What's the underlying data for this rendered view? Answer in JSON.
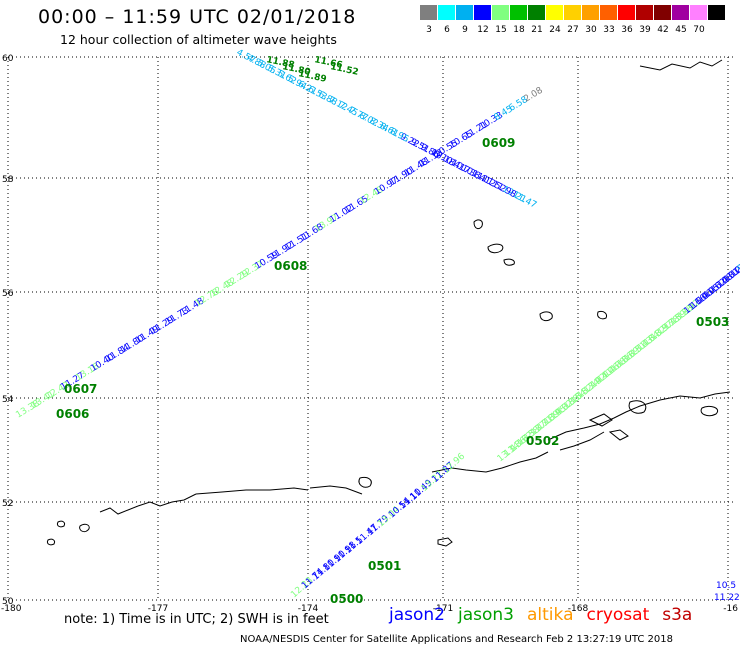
{
  "header": {
    "title": "00:00 – 11:59 UTC 02/01/2018",
    "subtitle": "12 hour collection of altimeter wave heights"
  },
  "color_scale": [
    {
      "label": "3",
      "color": "#7f7f7f"
    },
    {
      "label": "6",
      "color": "#00ffff"
    },
    {
      "label": "9",
      "color": "#00b0f0"
    },
    {
      "label": "12",
      "color": "#0000ff"
    },
    {
      "label": "15",
      "color": "#80ff80"
    },
    {
      "label": "18",
      "color": "#00c000"
    },
    {
      "label": "21",
      "color": "#008000"
    },
    {
      "label": "24",
      "color": "#ffff00"
    },
    {
      "label": "27",
      "color": "#ffd000"
    },
    {
      "label": "30",
      "color": "#ffa000"
    },
    {
      "label": "33",
      "color": "#ff6000"
    },
    {
      "label": "36",
      "color": "#ff0000"
    },
    {
      "label": "39",
      "color": "#b00000"
    },
    {
      "label": "42",
      "color": "#800000"
    },
    {
      "label": "45",
      "color": "#a000a0"
    },
    {
      "label": "70",
      "color": "#ff80ff"
    },
    {
      "label": "",
      "color": "#000000"
    }
  ],
  "axes": {
    "lat_ticks": [
      "60",
      "58",
      "56",
      "54",
      "52",
      "50"
    ],
    "lon_ticks": [
      "-180",
      "-177",
      "-174",
      "-171",
      "-168",
      "-16"
    ]
  },
  "tracks": {
    "t0606_0607": [
      {
        "text": "13.38",
        "color": "#80ff80"
      },
      {
        "text": "13.41",
        "color": "#80ff80"
      },
      {
        "text": "12.42",
        "color": "#80ff80"
      },
      {
        "text": "11.27",
        "color": "#0000ff"
      },
      {
        "text": "13.16",
        "color": "#80ff80"
      },
      {
        "text": "10.40",
        "color": "#0000ff"
      },
      {
        "text": "11.84",
        "color": "#0000ff"
      },
      {
        "text": "11.80",
        "color": "#0000ff"
      },
      {
        "text": "11.49",
        "color": "#0000ff"
      },
      {
        "text": "11.29",
        "color": "#0000ff"
      },
      {
        "text": "11.73",
        "color": "#0000ff"
      },
      {
        "text": "11.48",
        "color": "#0000ff"
      },
      {
        "text": "12.78",
        "color": "#80ff80"
      },
      {
        "text": "12.48",
        "color": "#80ff80"
      },
      {
        "text": "12.29",
        "color": "#80ff80"
      },
      {
        "text": "12.37",
        "color": "#80ff80"
      },
      {
        "text": "10.59",
        "color": "#0000ff"
      },
      {
        "text": "11.92",
        "color": "#0000ff"
      },
      {
        "text": "11.51",
        "color": "#0000ff"
      },
      {
        "text": "11.68",
        "color": "#0000ff"
      },
      {
        "text": "13.97",
        "color": "#80ff80"
      },
      {
        "text": "11.02",
        "color": "#0000ff"
      },
      {
        "text": "11.65",
        "color": "#0000ff"
      },
      {
        "text": "12.48",
        "color": "#80ff80"
      },
      {
        "text": "10.97",
        "color": "#0000ff"
      },
      {
        "text": "11.90",
        "color": "#0000ff"
      },
      {
        "text": "11.48",
        "color": "#0000ff"
      },
      {
        "text": "11.12",
        "color": "#0000ff"
      },
      {
        "text": "10.55",
        "color": "#0000ff"
      },
      {
        "text": "10.65",
        "color": "#0000ff"
      },
      {
        "text": "11.21",
        "color": "#0000ff"
      },
      {
        "text": "10.33",
        "color": "#0000ff"
      },
      {
        "text": "8.45",
        "color": "#00b0f0"
      },
      {
        "text": "6.58",
        "color": "#00b0f0"
      },
      {
        "text": "2.08",
        "color": "#7f7f7f"
      }
    ],
    "t0608_0609": [
      {
        "text": "11.47",
        "color": "#00b0f0"
      },
      {
        "text": "12.21",
        "color": "#00b0f0"
      },
      {
        "text": "11.98",
        "color": "#0000ff"
      },
      {
        "text": "11.52",
        "color": "#0000ff"
      },
      {
        "text": "11.12",
        "color": "#0000ff"
      },
      {
        "text": "10.84",
        "color": "#0000ff"
      },
      {
        "text": "10.73",
        "color": "#0000ff"
      },
      {
        "text": "10.41",
        "color": "#0000ff"
      },
      {
        "text": "10.18",
        "color": "#0000ff"
      },
      {
        "text": "9.86",
        "color": "#0000ff"
      },
      {
        "text": "9.51",
        "color": "#0000ff"
      },
      {
        "text": "9.22",
        "color": "#0000ff"
      },
      {
        "text": "8.95",
        "color": "#00b0f0"
      },
      {
        "text": "8.61",
        "color": "#00b0f0"
      },
      {
        "text": "8.34",
        "color": "#00b0f0"
      },
      {
        "text": "8.02",
        "color": "#00b0f0"
      },
      {
        "text": "7.77",
        "color": "#00b0f0"
      },
      {
        "text": "7.45",
        "color": "#00b0f0"
      },
      {
        "text": "7.12",
        "color": "#00b0f0"
      },
      {
        "text": "6.88",
        "color": "#00b0f0"
      },
      {
        "text": "6.53",
        "color": "#00b0f0"
      },
      {
        "text": "6.21",
        "color": "#00b0f0"
      },
      {
        "text": "5.94",
        "color": "#00b0f0"
      },
      {
        "text": "5.62",
        "color": "#00b0f0"
      },
      {
        "text": "5.31",
        "color": "#00b0f0"
      },
      {
        "text": "5.05",
        "color": "#00b0f0"
      },
      {
        "text": "4.88",
        "color": "#00b0f0"
      },
      {
        "text": "4.57",
        "color": "#00b0f0"
      }
    ],
    "t0502_0503": [
      {
        "text": "13.14",
        "color": "#80ff80"
      },
      {
        "text": "13.36",
        "color": "#80ff80"
      },
      {
        "text": "13.62",
        "color": "#80ff80"
      },
      {
        "text": "13.58",
        "color": "#80ff80"
      },
      {
        "text": "13.77",
        "color": "#80ff80"
      },
      {
        "text": "13.71",
        "color": "#80ff80"
      },
      {
        "text": "13.89",
        "color": "#80ff80"
      },
      {
        "text": "13.95",
        "color": "#80ff80"
      },
      {
        "text": "14.02",
        "color": "#80ff80"
      },
      {
        "text": "13.88",
        "color": "#80ff80"
      },
      {
        "text": "13.64",
        "color": "#80ff80"
      },
      {
        "text": "13.52",
        "color": "#80ff80"
      },
      {
        "text": "13.74",
        "color": "#80ff80"
      },
      {
        "text": "13.92",
        "color": "#80ff80"
      },
      {
        "text": "14.11",
        "color": "#80ff80"
      },
      {
        "text": "14.26",
        "color": "#80ff80"
      },
      {
        "text": "14.08",
        "color": "#80ff80"
      },
      {
        "text": "13.86",
        "color": "#80ff80"
      },
      {
        "text": "13.69",
        "color": "#80ff80"
      },
      {
        "text": "13.51",
        "color": "#80ff80"
      },
      {
        "text": "13.43",
        "color": "#80ff80"
      },
      {
        "text": "13.64",
        "color": "#80ff80"
      },
      {
        "text": "13.82",
        "color": "#80ff80"
      },
      {
        "text": "13.97",
        "color": "#80ff80"
      },
      {
        "text": "13.78",
        "color": "#80ff80"
      },
      {
        "text": "13.59",
        "color": "#80ff80"
      },
      {
        "text": "13.38",
        "color": "#80ff80"
      },
      {
        "text": "12.92",
        "color": "#80ff80"
      },
      {
        "text": "11.66",
        "color": "#0000ff"
      },
      {
        "text": "11.40",
        "color": "#0000ff"
      },
      {
        "text": "10.95",
        "color": "#0000ff"
      },
      {
        "text": "10.62",
        "color": "#0000ff"
      },
      {
        "text": "10.48",
        "color": "#0000ff"
      },
      {
        "text": "10.31",
        "color": "#0000ff"
      },
      {
        "text": "10.27",
        "color": "#0000ff"
      },
      {
        "text": "10.65",
        "color": "#0000ff"
      },
      {
        "text": "9.84",
        "color": "#00b0f0"
      }
    ],
    "t0500_0501": [
      {
        "text": "12.23",
        "color": "#80ff80"
      },
      {
        "text": "11.74",
        "color": "#0000ff"
      },
      {
        "text": "11.80",
        "color": "#0000ff"
      },
      {
        "text": "11.90",
        "color": "#0000ff"
      },
      {
        "text": "11.98",
        "color": "#0000ff"
      },
      {
        "text": "11.5",
        "color": "#0000ff"
      },
      {
        "text": "11.47",
        "color": "#0000ff"
      },
      {
        "text": "11.79",
        "color": "#0000ff"
      },
      {
        "text": "13.04",
        "color": "#80ff80"
      },
      {
        "text": "10.54",
        "color": "#0000ff"
      },
      {
        "text": "11.10",
        "color": "#0000ff"
      },
      {
        "text": "11.49",
        "color": "#0000ff"
      },
      {
        "text": "13.22",
        "color": "#80ff80"
      },
      {
        "text": "11.87",
        "color": "#0000ff"
      },
      {
        "text": "12.96",
        "color": "#80ff80"
      }
    ],
    "right_edge": [
      {
        "text": "10.5",
        "color": "#0000ff"
      },
      {
        "text": "11.22",
        "color": "#0000ff"
      }
    ]
  },
  "pass_labels": {
    "p0606": "0606",
    "p0607": "0607",
    "p0608": "0608",
    "p0609": "0609",
    "p0502": "0502",
    "p0503": "0503",
    "p0500": "0500",
    "p0501": "0501"
  },
  "top_cluster": [
    "11.88",
    "11.80",
    "11.89",
    "11.66",
    "11.52"
  ],
  "footer": {
    "note": "note:  1) Time is in UTC;  2) SWH is in feet",
    "credit": "NOAA/NESDIS Center for Satellite Applications and Research    Feb  2 13:27:19 UTC 2018"
  },
  "legend": [
    {
      "label": "jason2",
      "color": "#0000ff"
    },
    {
      "label": "jason3",
      "color": "#00a000"
    },
    {
      "label": "altika",
      "color": "#ff9900"
    },
    {
      "label": "cryosat",
      "color": "#ff0000"
    },
    {
      "label": "s3a",
      "color": "#c00000"
    }
  ]
}
